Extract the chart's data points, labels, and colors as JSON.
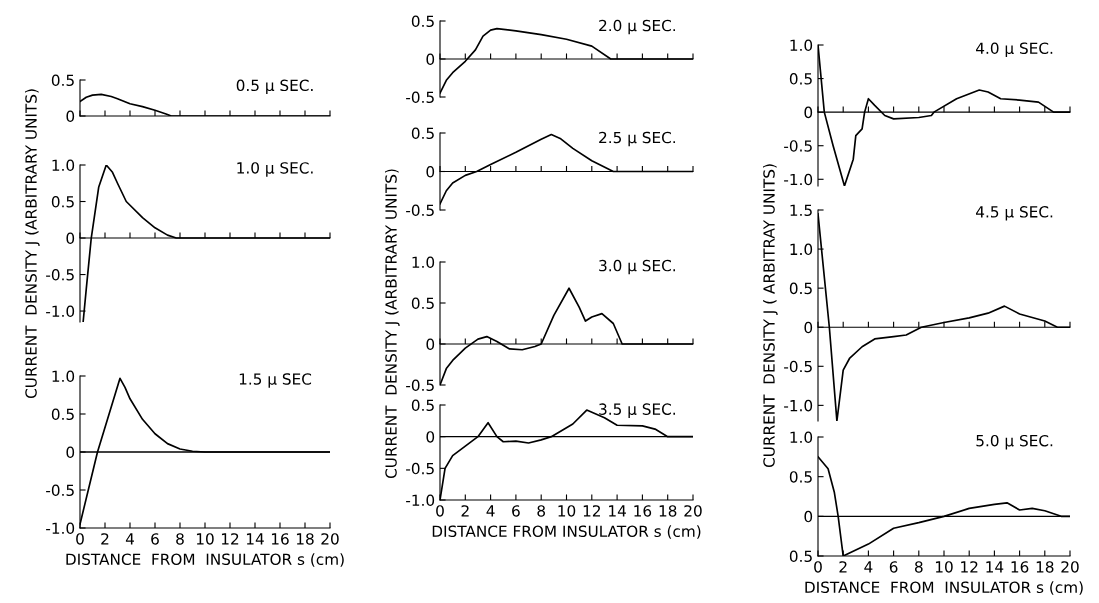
{
  "chart_data": [
    {
      "type": "line",
      "title": "0.5 μ SEC.",
      "x": [
        0,
        0.5,
        1,
        1.7,
        2.5,
        3,
        4,
        5,
        6,
        7,
        7.3,
        20
      ],
      "series": [
        {
          "color": "#000000",
          "values": [
            0.2,
            0.26,
            0.29,
            0.3,
            0.27,
            0.24,
            0.17,
            0.13,
            0.08,
            0.02,
            0,
            0
          ]
        }
      ],
      "xlim": [
        0,
        20
      ],
      "ylim": [
        0,
        0.5
      ],
      "xticks": [
        {
          "value": 0,
          "label": null
        },
        {
          "value": 2,
          "label": null
        },
        {
          "value": 4,
          "label": null
        },
        {
          "value": 6,
          "label": null
        },
        {
          "value": 8,
          "label": null
        },
        {
          "value": 10,
          "label": null
        },
        {
          "value": 12,
          "label": null
        },
        {
          "value": 14,
          "label": null
        },
        {
          "value": 16,
          "label": null
        },
        {
          "value": 18,
          "label": null
        },
        {
          "value": 20,
          "label": null
        }
      ],
      "yticks": [
        0,
        0.5
      ],
      "tick_labels": "y"
    },
    {
      "type": "line",
      "title": "1.0 μ SEC.",
      "ylabel": "CURRENT  DENSITY J (ARBITRARY UNITS)",
      "x": [
        0.25,
        0.5,
        0.9,
        1.5,
        2.1,
        2.6,
        3,
        3.7,
        5,
        6,
        7,
        7.7,
        20
      ],
      "series": [
        {
          "color": "#000000",
          "values": [
            -1.15,
            -0.7,
            0,
            0.7,
            1.0,
            0.9,
            0.75,
            0.5,
            0.28,
            0.14,
            0.04,
            0,
            0
          ]
        }
      ],
      "xlim": [
        0,
        20
      ],
      "ylim": [
        -1.15,
        1.0
      ],
      "xticks": [
        {
          "value": 0,
          "label": null
        },
        {
          "value": 2,
          "label": null
        },
        {
          "value": 4,
          "label": null
        },
        {
          "value": 6,
          "label": null
        },
        {
          "value": 8,
          "label": null
        },
        {
          "value": 10,
          "label": null
        },
        {
          "value": 12,
          "label": null
        },
        {
          "value": 14,
          "label": null
        },
        {
          "value": 16,
          "label": null
        },
        {
          "value": 18,
          "label": null
        },
        {
          "value": 20,
          "label": null
        }
      ],
      "yticks": [
        {
          "value": -1,
          "label": "-1.0"
        },
        -0.5,
        0,
        0.5,
        {
          "value": 1,
          "label": "1.0"
        }
      ],
      "tick_labels": "y"
    },
    {
      "type": "line",
      "title": "1.5 μ SEC",
      "xlabel": "DISTANCE  FROM  INSULATOR s (cm)",
      "x": [
        0,
        1.4,
        3.2,
        3.6,
        4,
        5,
        6,
        7,
        8,
        9,
        10,
        20
      ],
      "series": [
        {
          "color": "#000000",
          "values": [
            -0.95,
            0,
            0.97,
            0.85,
            0.7,
            0.43,
            0.24,
            0.11,
            0.04,
            0.01,
            0,
            0
          ]
        }
      ],
      "xlim": [
        0,
        20
      ],
      "ylim": [
        -1.0,
        1.0
      ],
      "xticks": [
        0,
        2,
        4,
        6,
        8,
        10,
        12,
        14,
        16,
        18,
        20
      ],
      "yticks": [
        {
          "value": -1,
          "label": "-1.0"
        },
        -0.5,
        0,
        0.5,
        {
          "value": 1,
          "label": "1.0"
        }
      ],
      "ref_lines": [
        {
          "axis": "y",
          "value": 0,
          "color": "#000000"
        }
      ]
    },
    {
      "type": "line",
      "title": "2.0 μ SEC.",
      "x": [
        0,
        0.5,
        1,
        2,
        2.8,
        3.4,
        4,
        4.5,
        6,
        8,
        10,
        12,
        13.5,
        20
      ],
      "series": [
        {
          "color": "#000000",
          "values": [
            -0.45,
            -0.28,
            -0.18,
            -0.03,
            0.12,
            0.3,
            0.38,
            0.4,
            0.37,
            0.32,
            0.26,
            0.17,
            0,
            0
          ]
        }
      ],
      "xlim": [
        0,
        20
      ],
      "ylim": [
        -0.5,
        0.5
      ],
      "xticks": [
        {
          "value": 0,
          "label": null
        },
        {
          "value": 2,
          "label": null
        },
        {
          "value": 4,
          "label": null
        },
        {
          "value": 6,
          "label": null
        },
        {
          "value": 8,
          "label": null
        },
        {
          "value": 10,
          "label": null
        },
        {
          "value": 12,
          "label": null
        },
        {
          "value": 14,
          "label": null
        },
        {
          "value": 16,
          "label": null
        },
        {
          "value": 18,
          "label": null
        },
        {
          "value": 20,
          "label": null
        }
      ],
      "yticks": [
        -0.5,
        0,
        0.5
      ],
      "tick_labels": "y"
    },
    {
      "type": "line",
      "title": "2.5 μ SEC.",
      "x": [
        0,
        0.5,
        1,
        2,
        2.9,
        4,
        6,
        8,
        8.8,
        9.5,
        10.5,
        12,
        13.7,
        20
      ],
      "series": [
        {
          "color": "#000000",
          "values": [
            -0.42,
            -0.25,
            -0.15,
            -0.05,
            0,
            0.09,
            0.25,
            0.42,
            0.48,
            0.43,
            0.3,
            0.14,
            0,
            0
          ]
        }
      ],
      "xlim": [
        0,
        20
      ],
      "ylim": [
        -0.5,
        0.5
      ],
      "xticks": [
        {
          "value": 0,
          "label": null
        },
        {
          "value": 2,
          "label": null
        },
        {
          "value": 4,
          "label": null
        },
        {
          "value": 6,
          "label": null
        },
        {
          "value": 8,
          "label": null
        },
        {
          "value": 10,
          "label": null
        },
        {
          "value": 12,
          "label": null
        },
        {
          "value": 14,
          "label": null
        },
        {
          "value": 16,
          "label": null
        },
        {
          "value": 18,
          "label": null
        },
        {
          "value": 20,
          "label": null
        }
      ],
      "yticks": [
        -0.5,
        0,
        0.5
      ],
      "tick_labels": "y"
    },
    {
      "type": "line",
      "title": "3.0 μ SEC.",
      "ylabel": "CURRENT  DENSITY J (ARBITRARY UNITS)",
      "x": [
        0,
        0.5,
        1,
        2,
        3,
        3.7,
        4.5,
        5.5,
        6.5,
        7.5,
        8,
        9,
        10.2,
        11,
        11.5,
        12,
        12.8,
        13.7,
        14.4,
        20
      ],
      "series": [
        {
          "color": "#000000",
          "values": [
            -0.5,
            -0.3,
            -0.2,
            -0.05,
            0.06,
            0.09,
            0.03,
            -0.06,
            -0.07,
            -0.03,
            0,
            0.35,
            0.68,
            0.45,
            0.28,
            0.33,
            0.37,
            0.25,
            0,
            0
          ]
        }
      ],
      "xlim": [
        0,
        20
      ],
      "ylim": [
        -0.5,
        1.0
      ],
      "xticks": [
        {
          "value": 0,
          "label": null
        },
        {
          "value": 2,
          "label": null
        },
        {
          "value": 4,
          "label": null
        },
        {
          "value": 6,
          "label": null
        },
        {
          "value": 8,
          "label": null
        },
        {
          "value": 10,
          "label": null
        },
        {
          "value": 12,
          "label": null
        },
        {
          "value": 14,
          "label": null
        },
        {
          "value": 16,
          "label": null
        },
        {
          "value": 18,
          "label": null
        },
        {
          "value": 20,
          "label": null
        }
      ],
      "yticks": [
        -0.5,
        0,
        0.5,
        {
          "value": 1,
          "label": "1.0"
        }
      ],
      "tick_labels": "y"
    },
    {
      "type": "line",
      "title": "3.5 μ SEC.",
      "xlabel": "DISTANCE FROM INSULATOR s (cm)",
      "x": [
        0,
        0.4,
        1,
        2,
        3,
        3.8,
        4.5,
        5,
        6,
        7,
        8,
        8.8,
        10.5,
        11.6,
        13,
        14,
        16,
        17,
        18,
        20
      ],
      "series": [
        {
          "color": "#000000",
          "values": [
            -1.0,
            -0.5,
            -0.3,
            -0.15,
            0,
            0.22,
            0,
            -0.08,
            -0.07,
            -0.1,
            -0.05,
            0,
            0.2,
            0.42,
            0.3,
            0.18,
            0.17,
            0.12,
            0,
            0
          ]
        }
      ],
      "xlim": [
        0,
        20
      ],
      "ylim": [
        -1.0,
        0.5
      ],
      "xticks": [
        0,
        2,
        4,
        6,
        8,
        10,
        12,
        14,
        16,
        18,
        20
      ],
      "yticks": [
        {
          "value": -1,
          "label": "-1.0"
        },
        -0.5,
        0,
        0.5
      ],
      "ref_lines": [
        {
          "axis": "y",
          "value": 0,
          "color": "#000000"
        }
      ]
    },
    {
      "type": "line",
      "title": "4.0 μ SEC.",
      "x": [
        0,
        0.5,
        1.2,
        2.1,
        2.8,
        3.0,
        3.5,
        3.7,
        4.0,
        4.5,
        5.3,
        6,
        8,
        9,
        9.2,
        11,
        12.8,
        13.5,
        14.5,
        16,
        17.5,
        18.7,
        20
      ],
      "series": [
        {
          "color": "#000000",
          "values": [
            1.0,
            0,
            -0.5,
            -1.1,
            -0.7,
            -0.35,
            -0.25,
            0,
            0.2,
            0.1,
            -0.05,
            -0.1,
            -0.08,
            -0.05,
            0,
            0.2,
            0.33,
            0.3,
            0.2,
            0.18,
            0.15,
            0,
            0
          ]
        }
      ],
      "xlim": [
        0,
        20
      ],
      "ylim": [
        -1.1,
        1.0
      ],
      "xticks": [
        {
          "value": 0,
          "label": null
        },
        {
          "value": 2,
          "label": null
        },
        {
          "value": 4,
          "label": null
        },
        {
          "value": 6,
          "label": null
        },
        {
          "value": 8,
          "label": null
        },
        {
          "value": 10,
          "label": null
        },
        {
          "value": 12,
          "label": null
        },
        {
          "value": 14,
          "label": null
        },
        {
          "value": 16,
          "label": null
        },
        {
          "value": 18,
          "label": null
        },
        {
          "value": 20,
          "label": null
        }
      ],
      "yticks": [
        {
          "value": -1,
          "label": "-1.0"
        },
        -0.5,
        0,
        0.5,
        {
          "value": 1,
          "label": "1.0"
        }
      ],
      "tick_labels": "y"
    },
    {
      "type": "line",
      "title": "4.5 μ SEC.",
      "ylabel": "CURRENT  DENSITY J ( ARBITRAY UNITS)",
      "x": [
        0,
        0.9,
        1.5,
        2.0,
        2.5,
        3.5,
        4.5,
        6,
        7,
        8.2,
        10,
        12,
        13.5,
        14.8,
        16,
        18,
        19,
        20
      ],
      "series": [
        {
          "color": "#000000",
          "values": [
            1.45,
            0,
            -1.2,
            -0.55,
            -0.4,
            -0.25,
            -0.15,
            -0.12,
            -0.1,
            0,
            0.06,
            0.12,
            0.18,
            0.27,
            0.17,
            0.08,
            0,
            0
          ]
        }
      ],
      "xlim": [
        0,
        20
      ],
      "ylim": [
        -1.2,
        1.5
      ],
      "xticks": [
        {
          "value": 0,
          "label": null
        },
        {
          "value": 2,
          "label": null
        },
        {
          "value": 4,
          "label": null
        },
        {
          "value": 6,
          "label": null
        },
        {
          "value": 8,
          "label": null
        },
        {
          "value": 10,
          "label": null
        },
        {
          "value": 12,
          "label": null
        },
        {
          "value": 14,
          "label": null
        },
        {
          "value": 16,
          "label": null
        },
        {
          "value": 18,
          "label": null
        },
        {
          "value": 20,
          "label": null
        }
      ],
      "yticks": [
        {
          "value": -1,
          "label": "-1.0"
        },
        -0.5,
        0,
        0.5,
        {
          "value": 1,
          "label": "1.0"
        },
        1.5
      ],
      "tick_labels": "y"
    },
    {
      "type": "line",
      "title": "5.0 μ SEC.",
      "xlabel": "DISTANCE  FROM  INSULATOR s (cm)",
      "x": [
        0,
        0.8,
        1.3,
        1.6,
        2,
        4,
        6,
        8,
        10,
        12,
        14,
        15,
        16,
        17,
        18,
        19.3,
        20
      ],
      "series": [
        {
          "color": "#000000",
          "values": [
            0.75,
            0.6,
            0.3,
            0,
            -0.5,
            -0.35,
            -0.15,
            -0.08,
            0,
            0.1,
            0.15,
            0.17,
            0.08,
            0.1,
            0.07,
            0,
            0
          ]
        }
      ],
      "xlim": [
        0,
        20
      ],
      "ylim": [
        -0.5,
        1.0
      ],
      "xticks": [
        0,
        2,
        4,
        6,
        8,
        10,
        12,
        14,
        16,
        18,
        20
      ],
      "yticks": [
        {
          "value": -0.5,
          "label": "0.5"
        },
        0,
        0.5,
        {
          "value": 1,
          "label": "1.0"
        }
      ],
      "ref_lines": [
        {
          "axis": "y",
          "value": 0,
          "color": "#000000"
        }
      ]
    }
  ]
}
